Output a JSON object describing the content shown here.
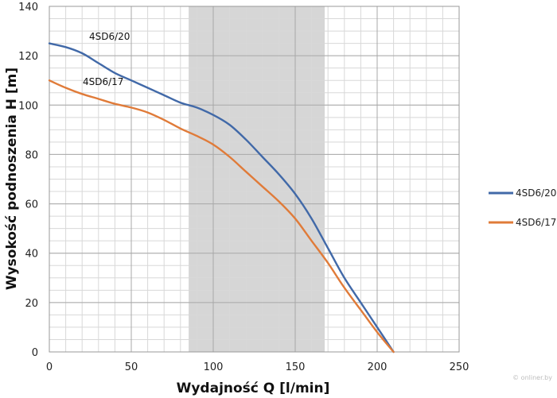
{
  "chart_data": {
    "type": "line",
    "title": "",
    "xlabel": "Wydajność Q [l/min]",
    "ylabel": "Wysokość podnoszenia H [m]",
    "xlim": [
      0,
      250
    ],
    "ylim": [
      0,
      140
    ],
    "x_ticks": [
      0,
      50,
      100,
      150,
      200,
      250
    ],
    "y_ticks": [
      0,
      20,
      40,
      60,
      80,
      100,
      120,
      140
    ],
    "grid": true,
    "legend_position": "right",
    "highlight_band": {
      "x_start": 85,
      "x_end": 168,
      "color": "#d6d6d6"
    },
    "series": [
      {
        "name": "4SD6/20",
        "label": "4SD6/20",
        "color": "#4169a8",
        "x": [
          0,
          10,
          20,
          30,
          40,
          50,
          60,
          70,
          80,
          90,
          100,
          110,
          120,
          130,
          140,
          150,
          160,
          170,
          180,
          190,
          200,
          210
        ],
        "y": [
          125,
          123.5,
          121,
          117,
          113,
          110,
          107,
          104,
          101,
          99,
          96,
          92,
          86,
          79,
          72,
          64,
          54,
          42,
          30,
          20,
          10,
          0
        ]
      },
      {
        "name": "4SD6/17",
        "label": "4SD6/17",
        "color": "#e07b39",
        "x": [
          0,
          10,
          20,
          30,
          40,
          50,
          60,
          70,
          80,
          90,
          100,
          110,
          120,
          130,
          140,
          150,
          160,
          170,
          180,
          190,
          200,
          210
        ],
        "y": [
          110,
          107,
          104.5,
          102.5,
          100.5,
          99,
          97,
          94,
          90.5,
          87.5,
          84,
          79,
          73,
          67,
          61,
          54,
          45,
          36,
          26,
          17,
          8,
          0
        ]
      }
    ]
  },
  "watermark_text": "© onliner.by"
}
